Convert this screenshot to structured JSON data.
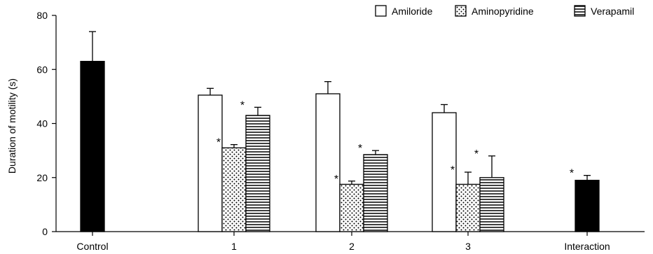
{
  "chart_data": {
    "type": "bar",
    "ylabel": "Duration of motility (s)",
    "xlabel": "",
    "ylim": [
      0,
      80
    ],
    "yticks": [
      0,
      20,
      40,
      60,
      80
    ],
    "grid": false,
    "legend_position": "top-right",
    "colors": {
      "solid": "#000000",
      "stroke": "#000000",
      "empty": "#ffffff"
    },
    "groups": [
      {
        "label": "Control",
        "bars": [
          {
            "series": "Control",
            "pattern": "solid",
            "value": 63,
            "error": 11,
            "sig": false
          }
        ]
      },
      {
        "label": "1",
        "bars": [
          {
            "series": "Amiloride",
            "pattern": "empty",
            "value": 50.5,
            "error": 2.5,
            "sig": false
          },
          {
            "series": "Aminopyridine",
            "pattern": "dots",
            "value": 31,
            "error": 1.2,
            "sig": true
          },
          {
            "series": "Verapamil",
            "pattern": "lines",
            "value": 43,
            "error": 3,
            "sig": true
          }
        ]
      },
      {
        "label": "2",
        "bars": [
          {
            "series": "Amiloride",
            "pattern": "empty",
            "value": 51,
            "error": 4.5,
            "sig": false
          },
          {
            "series": "Aminopyridine",
            "pattern": "dots",
            "value": 17.5,
            "error": 1.2,
            "sig": true
          },
          {
            "series": "Verapamil",
            "pattern": "lines",
            "value": 28.5,
            "error": 1.5,
            "sig": true
          }
        ]
      },
      {
        "label": "3",
        "bars": [
          {
            "series": "Amiloride",
            "pattern": "empty",
            "value": 44,
            "error": 3,
            "sig": false
          },
          {
            "series": "Aminopyridine",
            "pattern": "dots",
            "value": 17.5,
            "error": 4.5,
            "sig": true
          },
          {
            "series": "Verapamil",
            "pattern": "lines",
            "value": 20,
            "error": 8,
            "sig": true
          }
        ]
      },
      {
        "label": "Interaction",
        "bars": [
          {
            "series": "Interaction",
            "pattern": "solid",
            "value": 19,
            "error": 1.8,
            "sig": true
          }
        ]
      }
    ],
    "legend": [
      {
        "label": "Amiloride",
        "pattern": "empty"
      },
      {
        "label": "Aminopyridine",
        "pattern": "dots"
      },
      {
        "label": "Verapamil",
        "pattern": "lines"
      }
    ],
    "significance_marker": "*"
  }
}
